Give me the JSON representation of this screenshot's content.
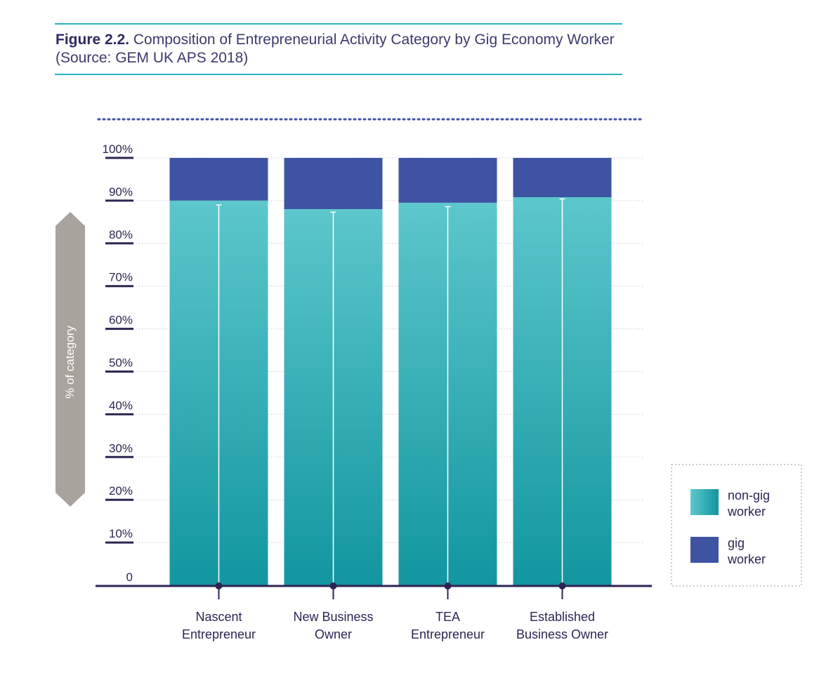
{
  "figure": {
    "label": "Figure 2.2.",
    "text": "Composition of Entrepreneurial Activity Category by Gig Economy Worker (Source: GEM UK APS 2018)"
  },
  "colors": {
    "rule": "#2bb5bf",
    "non_gig_top": "#5cc7cc",
    "non_gig_bottom": "#12969f",
    "gig": "#3f53a3",
    "axis": "#2e2452",
    "tick_text": "#2e2452",
    "ylabel_arrow": "#a9a39d",
    "dots": "#3f53a3"
  },
  "chart_data": {
    "type": "bar",
    "stacked": true,
    "categories": [
      [
        "Nascent",
        "Entrepreneur"
      ],
      [
        "New Business",
        "Owner"
      ],
      [
        "TEA",
        "Entrepreneur"
      ],
      [
        "Established",
        "Business Owner"
      ]
    ],
    "series": [
      {
        "name": "non-gig worker",
        "values": [
          90.0,
          88.0,
          89.5,
          90.8
        ]
      },
      {
        "name": "gig worker",
        "values": [
          10.0,
          12.0,
          10.5,
          9.2
        ]
      }
    ],
    "error_bar_top": [
      89.0,
      87.3,
      88.6,
      90.4
    ],
    "yticks": [
      "0",
      "10%",
      "20%",
      "30%",
      "40%",
      "50%",
      "60%",
      "70%",
      "80%",
      "90%",
      "100%"
    ],
    "ylim": [
      0,
      100
    ],
    "ylabel": "% of category",
    "xlabel": "",
    "legend": {
      "position": "right",
      "items": [
        {
          "series": "non-gig worker",
          "lines": [
            "non-gig",
            "worker"
          ]
        },
        {
          "series": "gig worker",
          "lines": [
            "gig",
            "worker"
          ]
        }
      ]
    },
    "grid": "dotted horizontal"
  }
}
